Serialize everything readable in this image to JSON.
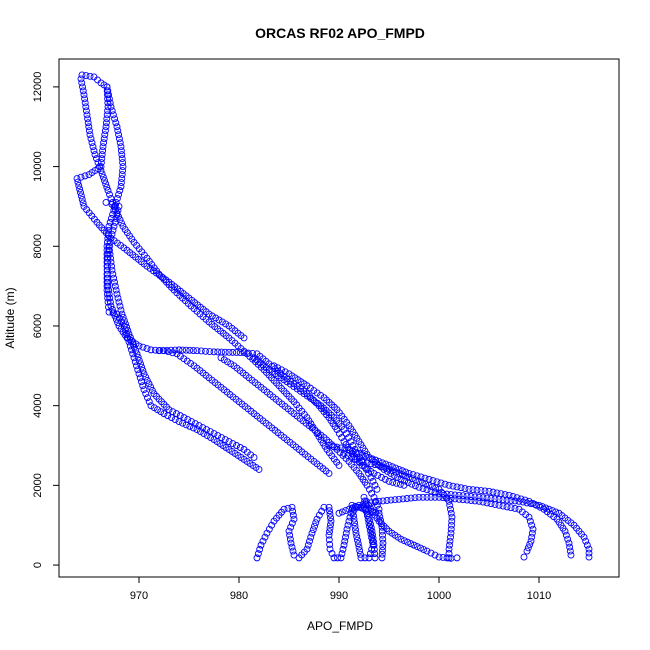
{
  "chart_data": {
    "type": "scatter",
    "title": "ORCAS RF02 APO_FMPD",
    "xlabel": "APO_FMPD",
    "ylabel": "Altitude (m)",
    "xlim": [
      962,
      1018
    ],
    "ylim": [
      -300,
      12700
    ],
    "xticks": [
      "970",
      "980",
      "990",
      "1000",
      "1010"
    ],
    "yticks": [
      "0",
      "2000",
      "4000",
      "6000",
      "8000",
      "10000",
      "12000"
    ],
    "marker": "open-circle",
    "color": "#0000ff",
    "series": [
      {
        "values": [
          [
            964.3,
            12300
          ],
          [
            965.5,
            12250
          ],
          [
            966.2,
            12100
          ],
          [
            966.8,
            12000
          ],
          [
            966.9,
            11500
          ],
          [
            966.7,
            11000
          ],
          [
            966.4,
            10500
          ],
          [
            966.2,
            10000
          ],
          [
            965.0,
            9800
          ],
          [
            963.8,
            9700
          ],
          [
            964.5,
            9000
          ],
          [
            965.8,
            8600
          ],
          [
            967.2,
            8200
          ],
          [
            968.8,
            7900
          ],
          [
            970.8,
            7500
          ],
          [
            973.0,
            7100
          ],
          [
            975.0,
            6700
          ],
          [
            977.0,
            6300
          ],
          [
            979.0,
            6000
          ],
          [
            980.5,
            5700
          ],
          [
            964.2,
            12200
          ],
          [
            964.5,
            11800
          ],
          [
            964.8,
            11300
          ],
          [
            965.1,
            10800
          ],
          [
            965.6,
            10300
          ],
          [
            966.2,
            9900
          ],
          [
            966.9,
            9400
          ],
          [
            967.5,
            9000
          ],
          [
            968.4,
            8500
          ],
          [
            969.5,
            8100
          ],
          [
            970.8,
            7700
          ],
          [
            972.0,
            7300
          ],
          [
            973.5,
            6900
          ],
          [
            975.2,
            6500
          ],
          [
            977.0,
            6100
          ],
          [
            979.0,
            5700
          ],
          [
            980.8,
            5300
          ],
          [
            982.5,
            4900
          ],
          [
            984.0,
            4500
          ],
          [
            985.5,
            4100
          ],
          [
            986.8,
            3700
          ],
          [
            987.8,
            3300
          ],
          [
            988.8,
            2900
          ],
          [
            990.0,
            2500
          ],
          [
            966.8,
            12000
          ],
          [
            967.2,
            11500
          ],
          [
            967.8,
            11000
          ],
          [
            968.2,
            10500
          ],
          [
            968.4,
            10000
          ],
          [
            968.2,
            9500
          ],
          [
            967.6,
            9000
          ],
          [
            967.0,
            8500
          ],
          [
            966.8,
            8000
          ],
          [
            966.8,
            7500
          ],
          [
            966.9,
            7000
          ],
          [
            967.2,
            6500
          ],
          [
            968.0,
            6000
          ],
          [
            968.8,
            5700
          ],
          [
            970.0,
            5500
          ],
          [
            971.2,
            5400
          ],
          [
            972.5,
            5380
          ],
          [
            973.8,
            5300
          ],
          [
            975.5,
            5000
          ],
          [
            977.0,
            4700
          ],
          [
            978.5,
            4400
          ],
          [
            980.0,
            4100
          ],
          [
            981.5,
            3800
          ],
          [
            983.0,
            3500
          ],
          [
            984.5,
            3200
          ],
          [
            986.0,
            2900
          ],
          [
            987.5,
            2600
          ],
          [
            989.0,
            2300
          ],
          [
            966.7,
            9100
          ],
          [
            967.3,
            9050
          ],
          [
            968.0,
            9000
          ],
          [
            967.6,
            8600
          ],
          [
            967.2,
            8200
          ],
          [
            966.9,
            7800
          ],
          [
            966.8,
            7300
          ],
          [
            966.8,
            6900
          ],
          [
            966.9,
            6600
          ],
          [
            967.0,
            6350
          ],
          [
            967.8,
            6300
          ],
          [
            968.5,
            6000
          ],
          [
            969.0,
            5600
          ],
          [
            969.5,
            5200
          ],
          [
            970.0,
            4800
          ],
          [
            970.5,
            4400
          ],
          [
            971.2,
            4000
          ],
          [
            972.5,
            3800
          ],
          [
            974.0,
            3600
          ],
          [
            975.8,
            3400
          ],
          [
            977.5,
            3150
          ],
          [
            979.0,
            2900
          ],
          [
            980.5,
            2650
          ],
          [
            982.0,
            2400
          ],
          [
            967.0,
            8000
          ],
          [
            967.3,
            7400
          ],
          [
            967.8,
            6800
          ],
          [
            968.3,
            6300
          ],
          [
            969.0,
            5800
          ],
          [
            969.8,
            5300
          ],
          [
            970.5,
            4800
          ],
          [
            971.5,
            4300
          ],
          [
            973.0,
            3900
          ],
          [
            974.5,
            3700
          ],
          [
            976.0,
            3500
          ],
          [
            977.5,
            3300
          ],
          [
            979.0,
            3100
          ],
          [
            980.5,
            2900
          ],
          [
            981.5,
            2700
          ],
          [
            972.0,
            5380
          ],
          [
            974.0,
            5400
          ],
          [
            975.8,
            5380
          ],
          [
            977.5,
            5350
          ],
          [
            979.0,
            5340
          ],
          [
            980.5,
            5330
          ],
          [
            981.8,
            5300
          ],
          [
            983.0,
            5050
          ],
          [
            984.2,
            4800
          ],
          [
            985.5,
            4550
          ],
          [
            986.8,
            4300
          ],
          [
            988.0,
            4000
          ],
          [
            989.0,
            3700
          ],
          [
            989.8,
            3400
          ],
          [
            990.5,
            3100
          ],
          [
            991.3,
            2800
          ],
          [
            992.3,
            2500
          ],
          [
            993.5,
            2300
          ],
          [
            995.0,
            2100
          ],
          [
            996.5,
            2000
          ],
          [
            978.2,
            5200
          ],
          [
            979.5,
            5000
          ],
          [
            981.0,
            4700
          ],
          [
            982.5,
            4400
          ],
          [
            984.0,
            4100
          ],
          [
            985.5,
            3800
          ],
          [
            987.0,
            3500
          ],
          [
            988.5,
            3200
          ],
          [
            989.8,
            2900
          ],
          [
            991.0,
            2600
          ],
          [
            992.0,
            2300
          ],
          [
            992.8,
            2000
          ],
          [
            993.5,
            1700
          ],
          [
            994.0,
            1400
          ],
          [
            981.5,
            5200
          ],
          [
            983.0,
            4900
          ],
          [
            984.8,
            4600
          ],
          [
            986.5,
            4300
          ],
          [
            988.2,
            4000
          ],
          [
            989.5,
            3700
          ],
          [
            990.5,
            3400
          ],
          [
            991.2,
            3100
          ],
          [
            991.8,
            2800
          ],
          [
            992.5,
            2500
          ],
          [
            993.2,
            2200
          ],
          [
            993.8,
            1900
          ],
          [
            983.5,
            5000
          ],
          [
            985.0,
            4800
          ],
          [
            986.8,
            4500
          ],
          [
            988.5,
            4200
          ],
          [
            989.8,
            3900
          ],
          [
            991.0,
            3500
          ],
          [
            992.0,
            3100
          ],
          [
            993.0,
            2700
          ],
          [
            994.5,
            2400
          ],
          [
            996.2,
            2150
          ],
          [
            998.0,
            1950
          ],
          [
            1000.0,
            1800
          ],
          [
            1002.0,
            1750
          ],
          [
            1004.0,
            1700
          ],
          [
            1006.0,
            1650
          ],
          [
            1008.0,
            1600
          ],
          [
            1010.0,
            1500
          ],
          [
            1012.0,
            1300
          ],
          [
            1013.5,
            1000
          ],
          [
            1014.5,
            700
          ],
          [
            1015.0,
            400
          ],
          [
            1015.0,
            200
          ],
          [
            989.0,
            3000
          ],
          [
            991.0,
            2900
          ],
          [
            993.0,
            2700
          ],
          [
            995.0,
            2500
          ],
          [
            997.0,
            2300
          ],
          [
            999.0,
            2150
          ],
          [
            1001.0,
            2000
          ],
          [
            1003.0,
            1900
          ],
          [
            1005.0,
            1850
          ],
          [
            1007.0,
            1750
          ],
          [
            1009.0,
            1600
          ],
          [
            1010.5,
            1400
          ],
          [
            1011.8,
            1150
          ],
          [
            1012.6,
            850
          ],
          [
            1013.0,
            550
          ],
          [
            1013.2,
            250
          ],
          [
            990.0,
            1300
          ],
          [
            992.0,
            1500
          ],
          [
            994.0,
            1600
          ],
          [
            996.0,
            1650
          ],
          [
            998.0,
            1700
          ],
          [
            1000.0,
            1700
          ],
          [
            1002.0,
            1650
          ],
          [
            1004.0,
            1600
          ],
          [
            1006.0,
            1500
          ],
          [
            1008.0,
            1400
          ],
          [
            1009.0,
            1200
          ],
          [
            1009.4,
            900
          ],
          [
            1009.2,
            600
          ],
          [
            1008.8,
            350
          ],
          [
            1008.5,
            200
          ],
          [
            981.8,
            180
          ],
          [
            982.2,
            500
          ],
          [
            982.8,
            800
          ],
          [
            983.5,
            1100
          ],
          [
            984.5,
            1400
          ],
          [
            985.3,
            1450
          ],
          [
            985.5,
            1150
          ],
          [
            985.0,
            850
          ],
          [
            985.2,
            550
          ],
          [
            985.5,
            250
          ],
          [
            986.0,
            180
          ],
          [
            986.8,
            400
          ],
          [
            987.3,
            800
          ],
          [
            987.8,
            1150
          ],
          [
            988.5,
            1450
          ],
          [
            989.0,
            1450
          ],
          [
            989.2,
            1100
          ],
          [
            989.0,
            750
          ],
          [
            989.1,
            400
          ],
          [
            989.5,
            180
          ],
          [
            990.2,
            180
          ],
          [
            990.5,
            500
          ],
          [
            990.8,
            900
          ],
          [
            991.2,
            1300
          ],
          [
            991.8,
            1450
          ],
          [
            992.5,
            1450
          ],
          [
            993.0,
            1200
          ],
          [
            993.3,
            850
          ],
          [
            993.5,
            500
          ],
          [
            993.6,
            180
          ],
          [
            994.3,
            180
          ],
          [
            994.4,
            550
          ],
          [
            994.3,
            950
          ],
          [
            994.0,
            1300
          ],
          [
            991.3,
            1500
          ],
          [
            991.5,
            1150
          ],
          [
            991.7,
            800
          ],
          [
            992.0,
            450
          ],
          [
            992.2,
            180
          ],
          [
            993.0,
            180
          ],
          [
            993.4,
            500
          ],
          [
            992.5,
            1700
          ],
          [
            993.2,
            1400
          ],
          [
            994.0,
            1100
          ],
          [
            995.0,
            850
          ],
          [
            996.2,
            650
          ],
          [
            997.5,
            500
          ],
          [
            998.8,
            350
          ],
          [
            1000.0,
            200
          ],
          [
            1001.2,
            170
          ],
          [
            1001.8,
            180
          ],
          [
            990.5,
            2800
          ],
          [
            992.0,
            2600
          ],
          [
            994.0,
            2500
          ],
          [
            996.0,
            2300
          ],
          [
            998.0,
            2100
          ],
          [
            1000.0,
            1900
          ],
          [
            1001.0,
            1600
          ],
          [
            1001.3,
            1200
          ],
          [
            1001.2,
            800
          ],
          [
            1001.0,
            400
          ],
          [
            1001.0,
            180
          ]
        ]
      }
    ]
  }
}
